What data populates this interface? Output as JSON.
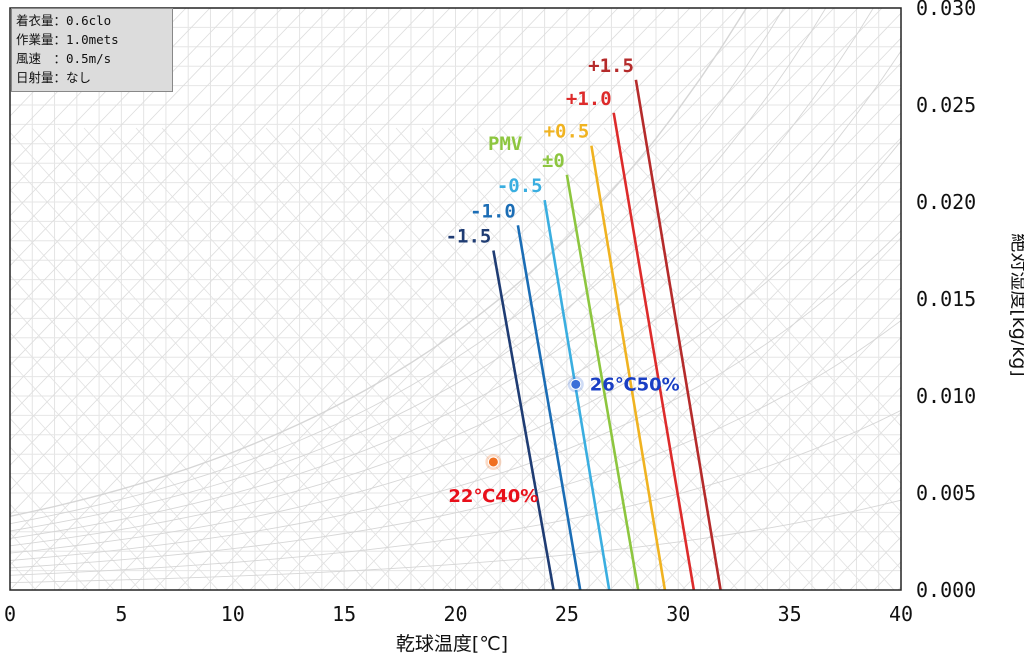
{
  "conditions": [
    {
      "label": "着衣量",
      "value": "0.6clo"
    },
    {
      "label": "作業量",
      "value": "1.0mets"
    },
    {
      "label": "風速　",
      "value": "0.5m/s"
    },
    {
      "label": "日射量",
      "value": "なし"
    }
  ],
  "chart_data": {
    "type": "line",
    "xlabel": "乾球温度[℃]",
    "ylabel": "絶対湿度[kg/kg]",
    "xlim": [
      0,
      40
    ],
    "ylim": [
      0,
      0.03
    ],
    "x_ticks": [
      "0",
      "5",
      "10",
      "15",
      "20",
      "25",
      "30",
      "35",
      "40"
    ],
    "y_ticks": [
      "0.000",
      "0.005",
      "0.010",
      "0.015",
      "0.020",
      "0.025",
      "0.030"
    ],
    "y_axis_position": "right",
    "background": "psychrometric chart",
    "pmv_title": "PMV",
    "pmv_title_color": "#8dc63f",
    "series": [
      {
        "name": "-1.5",
        "color": "#1f3c73",
        "x": [
          21.7,
          24.4
        ],
        "y": [
          0.0175,
          0.0
        ]
      },
      {
        "name": "-1.0",
        "color": "#1b6db5",
        "x": [
          22.8,
          25.6
        ],
        "y": [
          0.0188,
          0.0
        ]
      },
      {
        "name": "-0.5",
        "color": "#3aaee0",
        "x": [
          24.0,
          26.9
        ],
        "y": [
          0.0201,
          0.0
        ]
      },
      {
        "name": "±0",
        "color": "#8dc63f",
        "x": [
          25.0,
          28.2
        ],
        "y": [
          0.0214,
          0.0
        ]
      },
      {
        "name": "+0.5",
        "color": "#f0b321",
        "x": [
          26.1,
          29.4
        ],
        "y": [
          0.0229,
          0.0
        ]
      },
      {
        "name": "+1.0",
        "color": "#dd2b2b",
        "x": [
          27.1,
          30.7
        ],
        "y": [
          0.0246,
          0.0
        ]
      },
      {
        "name": "+1.5",
        "color": "#b52b2b",
        "x": [
          28.1,
          31.9
        ],
        "y": [
          0.0263,
          0.0
        ]
      }
    ],
    "points": [
      {
        "label": "26℃50%",
        "x": 25.4,
        "y": 0.0106,
        "color": "#3b6fd8",
        "label_color": "#1a3fc4"
      },
      {
        "label": "22℃40%",
        "x": 21.7,
        "y": 0.0066,
        "color": "#f07020",
        "label_color": "#e8101a"
      }
    ]
  }
}
